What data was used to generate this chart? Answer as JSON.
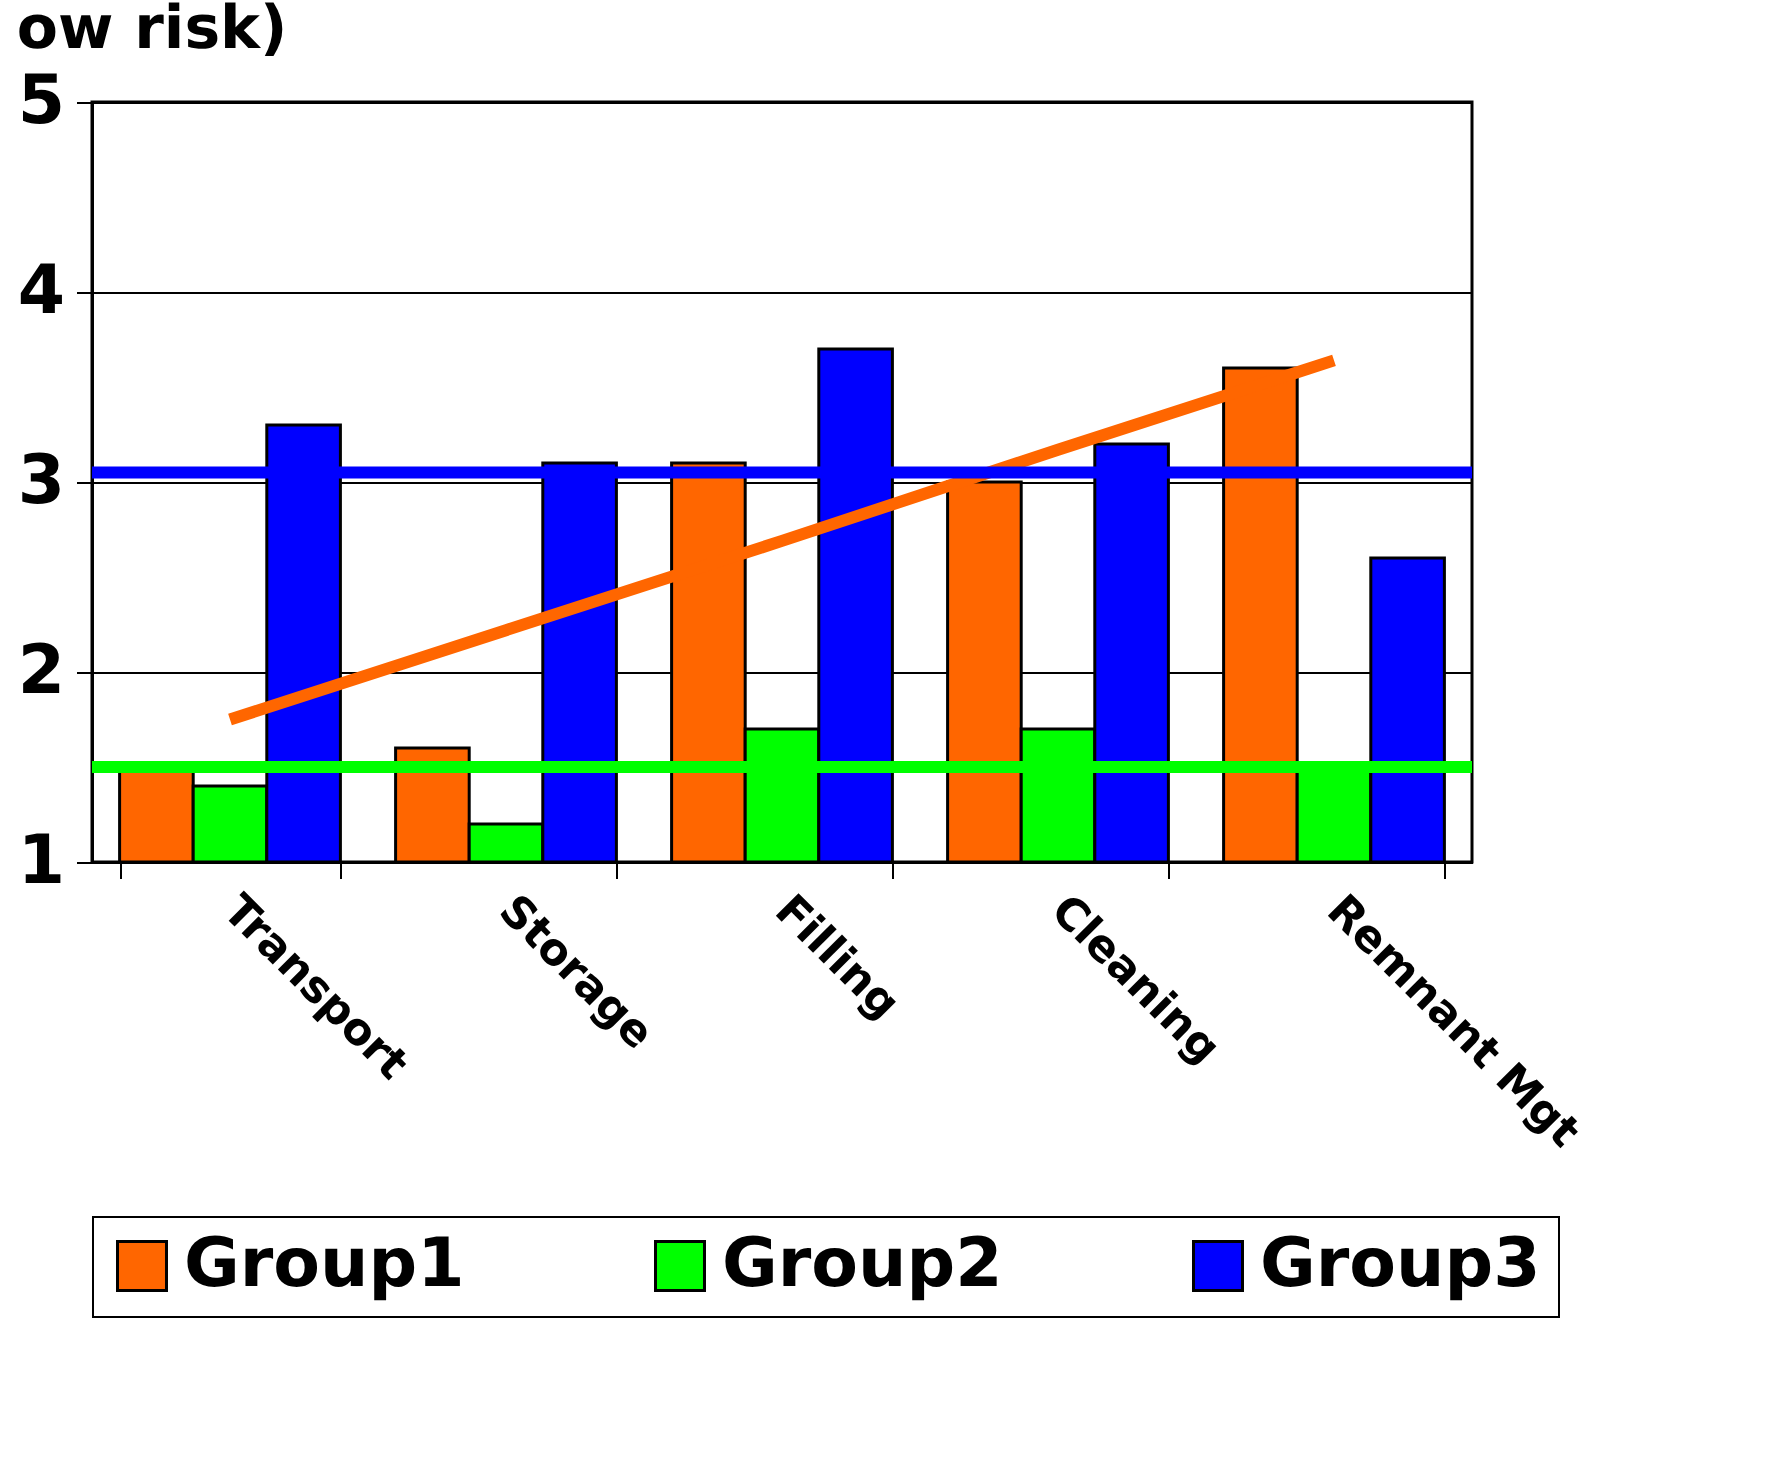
{
  "chart_data": {
    "type": "bar",
    "title": "ow risk)",
    "categories": [
      "Transport",
      "Storage",
      "Filling",
      "Cleaning",
      "Remnant Mgt"
    ],
    "series": [
      {
        "name": "Group1",
        "color": "#ff6600",
        "values": [
          1.5,
          1.6,
          3.1,
          3.0,
          3.6
        ]
      },
      {
        "name": "Group2",
        "color": "#00ff00",
        "values": [
          1.4,
          1.2,
          1.7,
          1.7,
          1.5
        ]
      },
      {
        "name": "Group3",
        "color": "#0000ff",
        "values": [
          3.3,
          3.1,
          3.7,
          3.2,
          2.6
        ]
      },
      {
        "type": "line",
        "color": "#ff6600",
        "values": [
          1.75,
          2.22,
          2.69,
          3.17,
          3.64
        ]
      }
    ],
    "ref_lines": [
      {
        "axis": "y",
        "value": 3.05,
        "color": "#0000ff"
      },
      {
        "axis": "y",
        "value": 1.5,
        "color": "#00ff00"
      }
    ],
    "ylim": [
      1,
      5
    ],
    "yticks": [
      1,
      2,
      3,
      4,
      5
    ],
    "grid": "y",
    "legend": "bottom"
  }
}
